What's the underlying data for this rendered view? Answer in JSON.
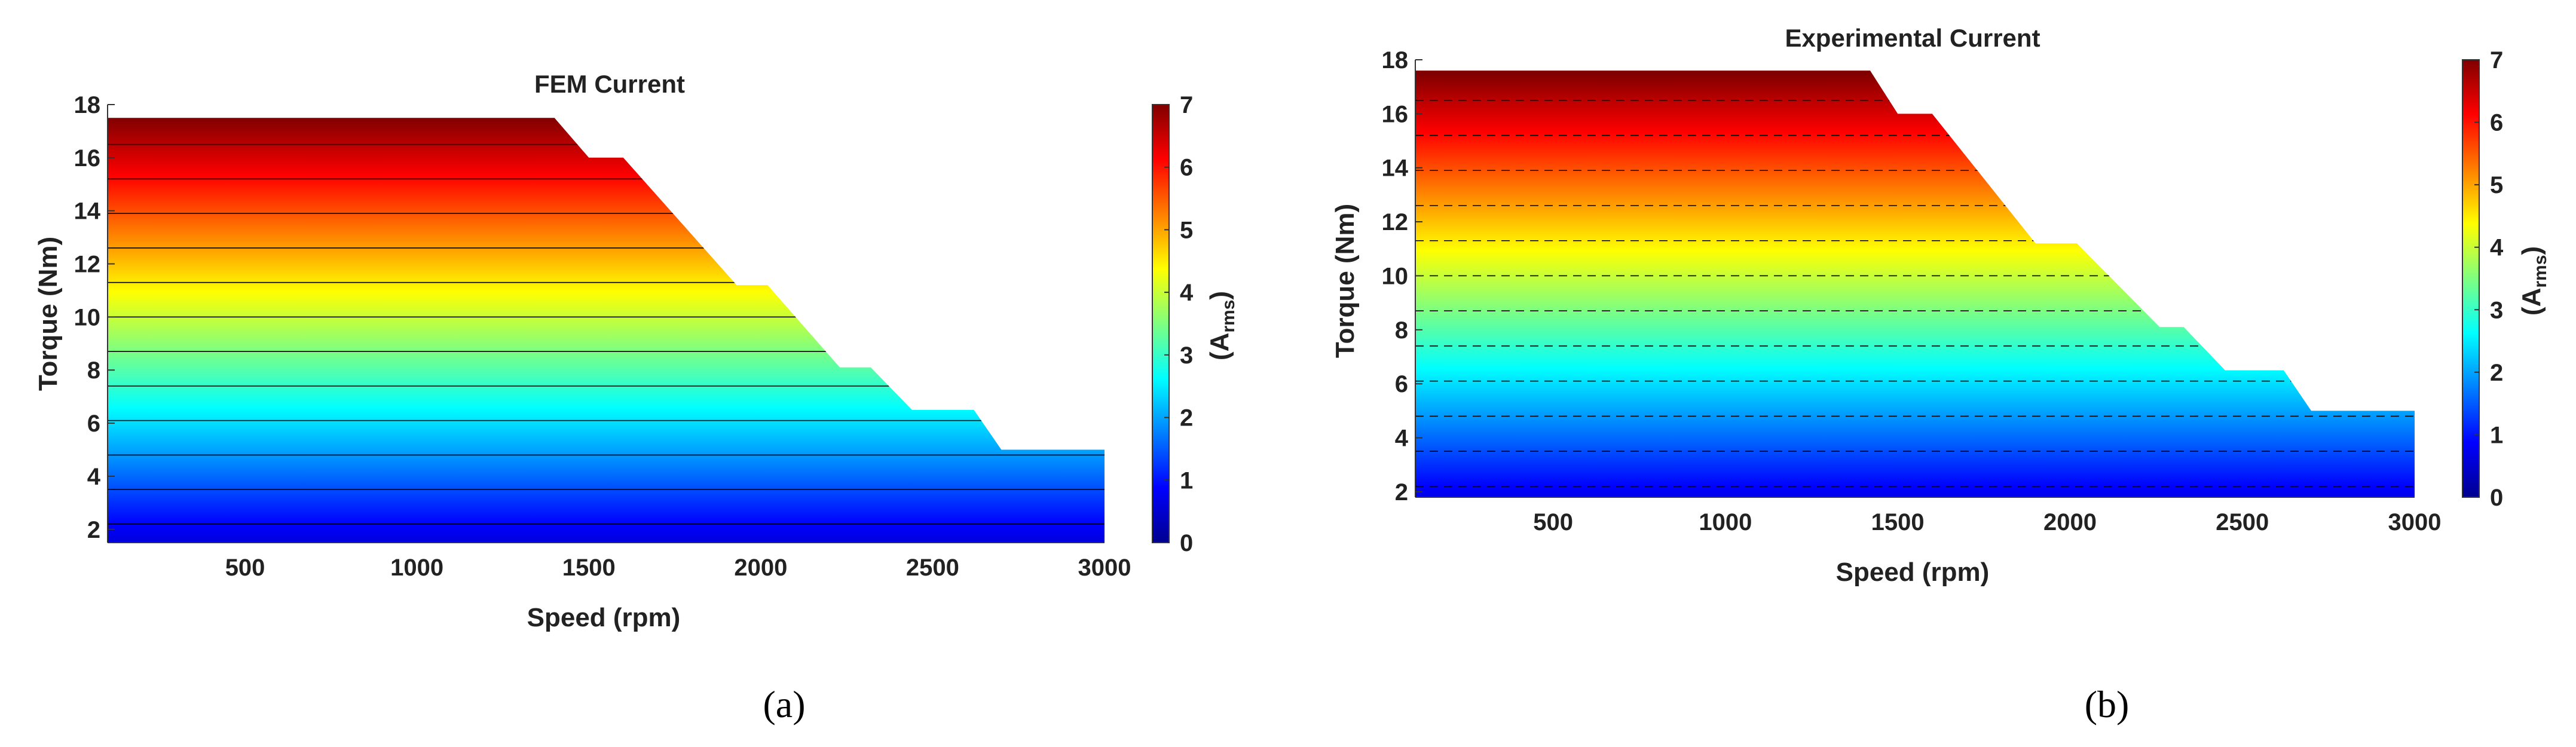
{
  "panel_labels": [
    "(a)",
    "(b)"
  ],
  "chart_data": [
    {
      "type": "heatmap",
      "title": "FEM Current",
      "xlabel": "Speed (rpm)",
      "ylabel": "Torque (Nm)",
      "colorbar_label": "(A",
      "colorbar_label_sub": "rms",
      "colorbar_label_end": ")",
      "xlim": [
        100,
        3000
      ],
      "ylim": [
        1.5,
        18
      ],
      "xticks": [
        500,
        1000,
        1500,
        2000,
        2500,
        3000
      ],
      "yticks": [
        2,
        4,
        6,
        8,
        10,
        12,
        14,
        16,
        18
      ],
      "clim": [
        0,
        7
      ],
      "cticks": [
        0,
        1,
        2,
        3,
        4,
        5,
        6,
        7
      ],
      "colormap": "jet",
      "current_rule": "current approx. 0.4 * torque",
      "boundary": [
        [
          100,
          17.5
        ],
        [
          1400,
          17.5
        ],
        [
          1500,
          16
        ],
        [
          1600,
          16
        ],
        [
          1930,
          11.2
        ],
        [
          2020,
          11.2
        ],
        [
          2230,
          8.1
        ],
        [
          2320,
          8.1
        ],
        [
          2440,
          6.5
        ],
        [
          2620,
          6.5
        ],
        [
          2700,
          5
        ],
        [
          3000,
          5
        ],
        [
          3000,
          1.5
        ],
        [
          100,
          1.5
        ]
      ]
    },
    {
      "type": "heatmap",
      "title": "Experimental Current",
      "xlabel": "Speed (rpm)",
      "ylabel": "Torque (Nm)",
      "colorbar_label": "(A",
      "colorbar_label_sub": "rms",
      "colorbar_label_end": ")",
      "xlim": [
        100,
        3000
      ],
      "ylim": [
        1.8,
        18
      ],
      "xticks": [
        500,
        1000,
        1500,
        2000,
        2500,
        3000
      ],
      "yticks": [
        2,
        4,
        6,
        8,
        10,
        12,
        14,
        16,
        18
      ],
      "clim": [
        0,
        7
      ],
      "cticks": [
        0,
        1,
        2,
        3,
        4,
        5,
        6,
        7
      ],
      "colormap": "jet",
      "current_rule": "current approx. 0.4 * torque",
      "boundary": [
        [
          100,
          17.6
        ],
        [
          1420,
          17.6
        ],
        [
          1500,
          16
        ],
        [
          1600,
          16
        ],
        [
          1900,
          11.2
        ],
        [
          2020,
          11.2
        ],
        [
          2260,
          8.1
        ],
        [
          2330,
          8.1
        ],
        [
          2450,
          6.5
        ],
        [
          2620,
          6.5
        ],
        [
          2700,
          5
        ],
        [
          3000,
          5
        ],
        [
          3000,
          1.8
        ],
        [
          100,
          1.8
        ]
      ]
    }
  ]
}
